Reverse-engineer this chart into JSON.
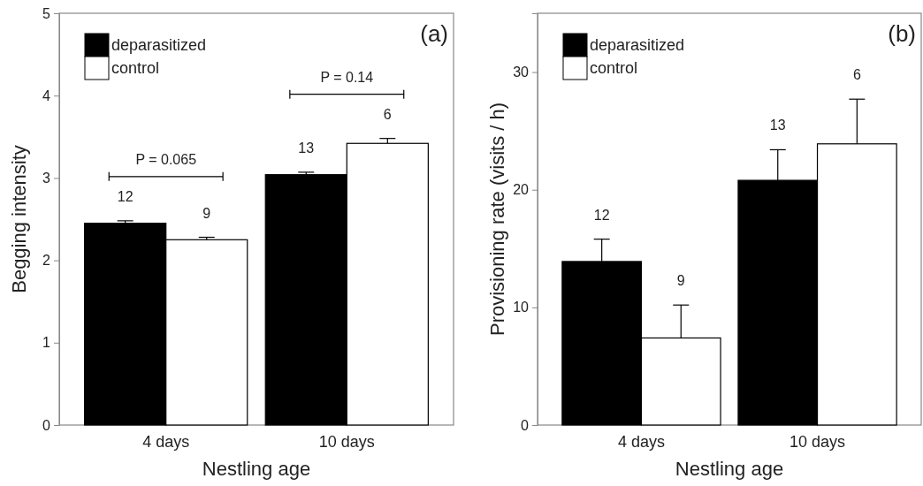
{
  "chart_data": [
    {
      "type": "bar",
      "xlabel": "Nestling age",
      "ylabel": "Begging intensity",
      "categories": [
        "4 days",
        "10 days"
      ],
      "ylim": [
        0,
        5
      ],
      "yticks": [
        0,
        1,
        2,
        3,
        4,
        5
      ],
      "legend": "top left",
      "series": [
        {
          "name": "deparasitized",
          "color": "#000000",
          "values": [
            2.45,
            3.04
          ],
          "errors": [
            [
              2.45,
              2.48
            ],
            [
              3.04,
              3.07
            ]
          ]
        },
        {
          "name": "control",
          "color": "#ffffff",
          "values": [
            2.25,
            3.42
          ],
          "errors": [
            [
              2.25,
              2.28
            ],
            [
              3.42,
              3.48
            ]
          ]
        }
      ],
      "annotations": [
        "(a)",
        "P = 0.065",
        "P = 0.14",
        "12",
        "9",
        "13",
        "6"
      ]
    },
    {
      "type": "bar",
      "xlabel": "Nestling age",
      "ylabel": "Provisioning rate (visits / h)",
      "categories": [
        "4 days",
        "10 days"
      ],
      "ylim": [
        0,
        35
      ],
      "yticks": [
        0,
        10,
        20,
        30
      ],
      "legend": "top left",
      "series": [
        {
          "name": "deparasitized",
          "color": "#000000",
          "values": [
            13.9,
            20.8
          ],
          "errors": [
            [
              13.9,
              15.8
            ],
            [
              20.8,
              23.4
            ]
          ]
        },
        {
          "name": "control",
          "color": "#ffffff",
          "values": [
            7.4,
            23.9
          ],
          "errors": [
            [
              7.4,
              10.2
            ],
            [
              23.9,
              27.7
            ]
          ]
        }
      ],
      "annotations": [
        "(b)",
        "12",
        "9",
        "13",
        "6"
      ]
    }
  ]
}
